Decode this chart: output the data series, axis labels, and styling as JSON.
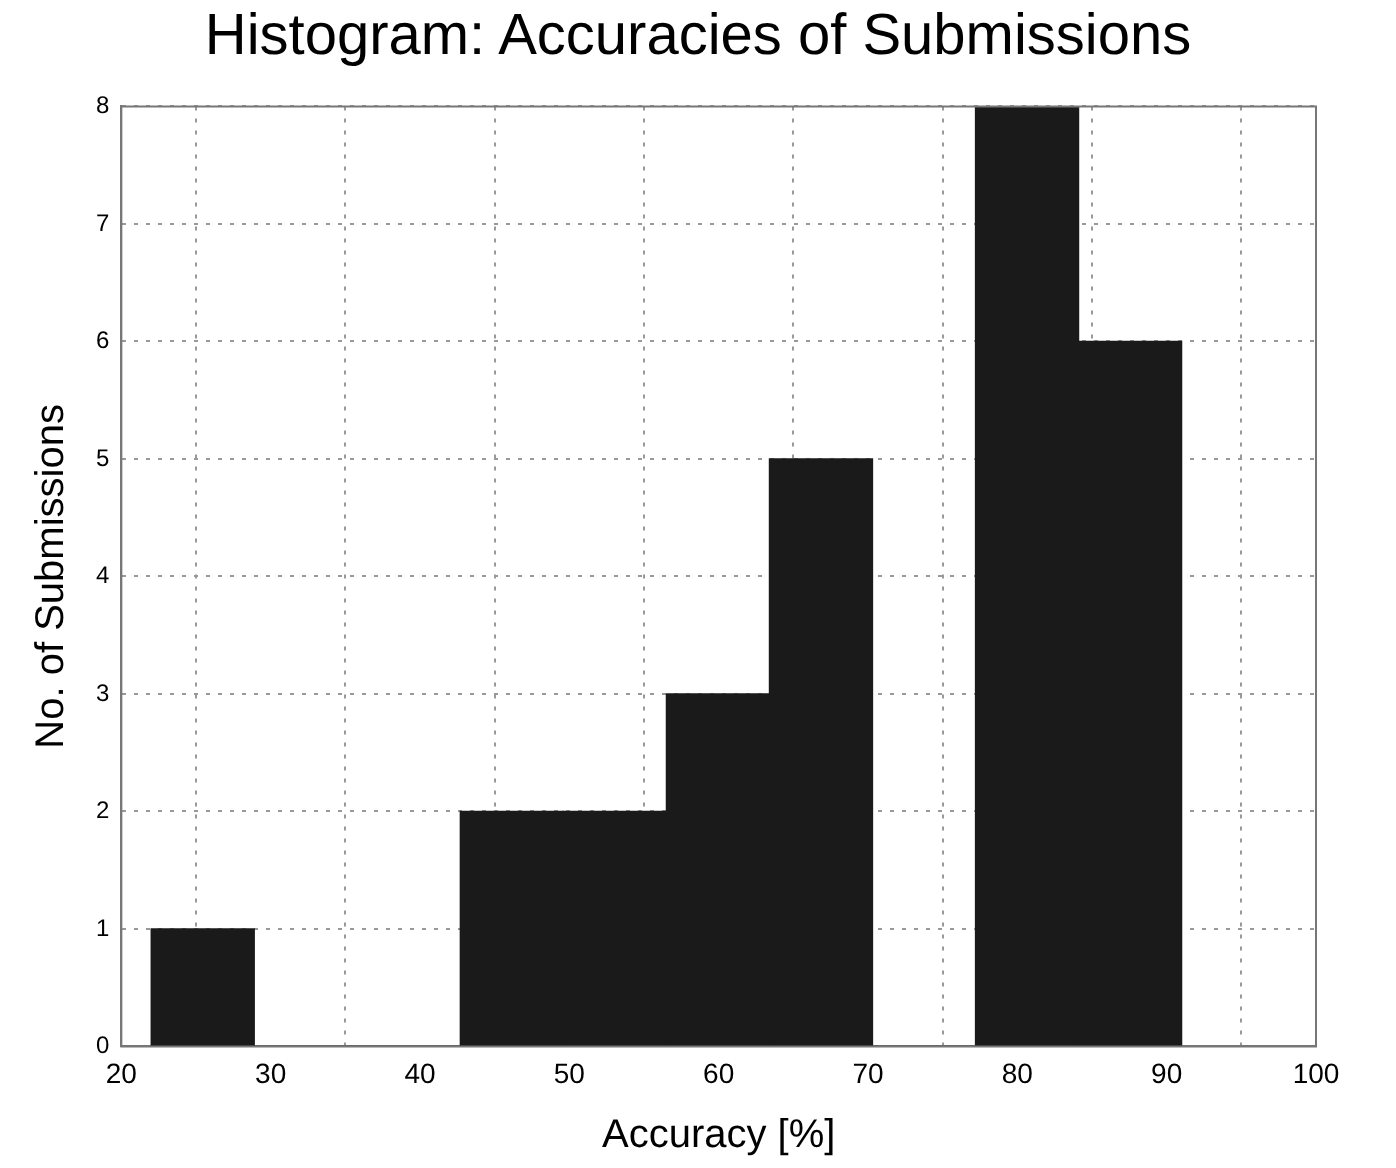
{
  "chart_data": {
    "type": "histogram",
    "title": "Histogram: Accuracies of Submissions",
    "xlabel": "Accuracy [%]",
    "ylabel": "No. of Submissions",
    "bins": [
      22,
      28.9,
      35.8,
      42.7,
      49.6,
      56.5,
      63.4,
      70.3,
      77.2,
      84.1,
      91
    ],
    "values": [
      1,
      0,
      0,
      2,
      2,
      3,
      5,
      0,
      8,
      6
    ],
    "color": "#1a1a1a",
    "xlim": [
      20,
      100
    ],
    "xticks": [
      20,
      30,
      40,
      50,
      60,
      70,
      80,
      90,
      100
    ],
    "ylim": [
      0,
      8
    ],
    "yticks": [
      0,
      1,
      2,
      3,
      4,
      5,
      6,
      7,
      8
    ],
    "grid": true,
    "legend": false
  }
}
